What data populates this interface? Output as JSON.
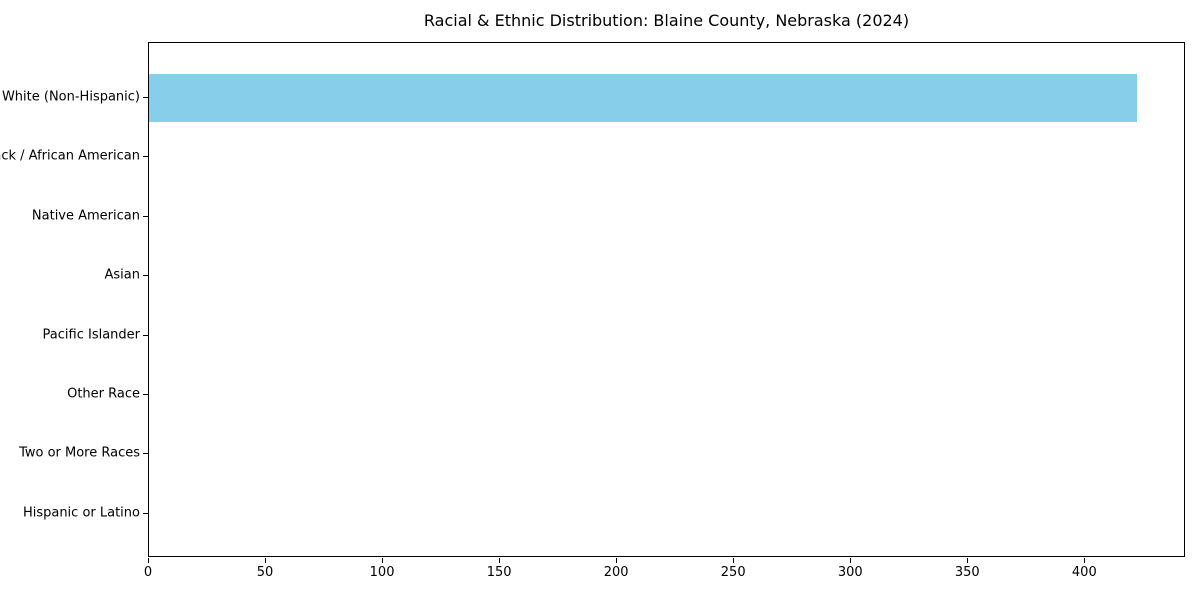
{
  "chart_data": {
    "type": "bar",
    "orientation": "horizontal",
    "title": "Racial & Ethnic Distribution: Blaine County, Nebraska (2024)",
    "categories": [
      "White (Non-Hispanic)",
      "Black / African American",
      "Native American",
      "Asian",
      "Pacific Islander",
      "Other Race",
      "Two or More Races",
      "Hispanic or Latino"
    ],
    "values": [
      422,
      0,
      0,
      0,
      0,
      0,
      0,
      0
    ],
    "xlabel": "",
    "ylabel": "",
    "xlim": [
      0,
      443
    ],
    "x_ticks": [
      0,
      50,
      100,
      150,
      200,
      250,
      300,
      350,
      400
    ],
    "grid": false,
    "legend_position": "none",
    "bar_color": "#87CEEB",
    "axis_color": "#000000",
    "background_color": "#FFFFFF"
  }
}
